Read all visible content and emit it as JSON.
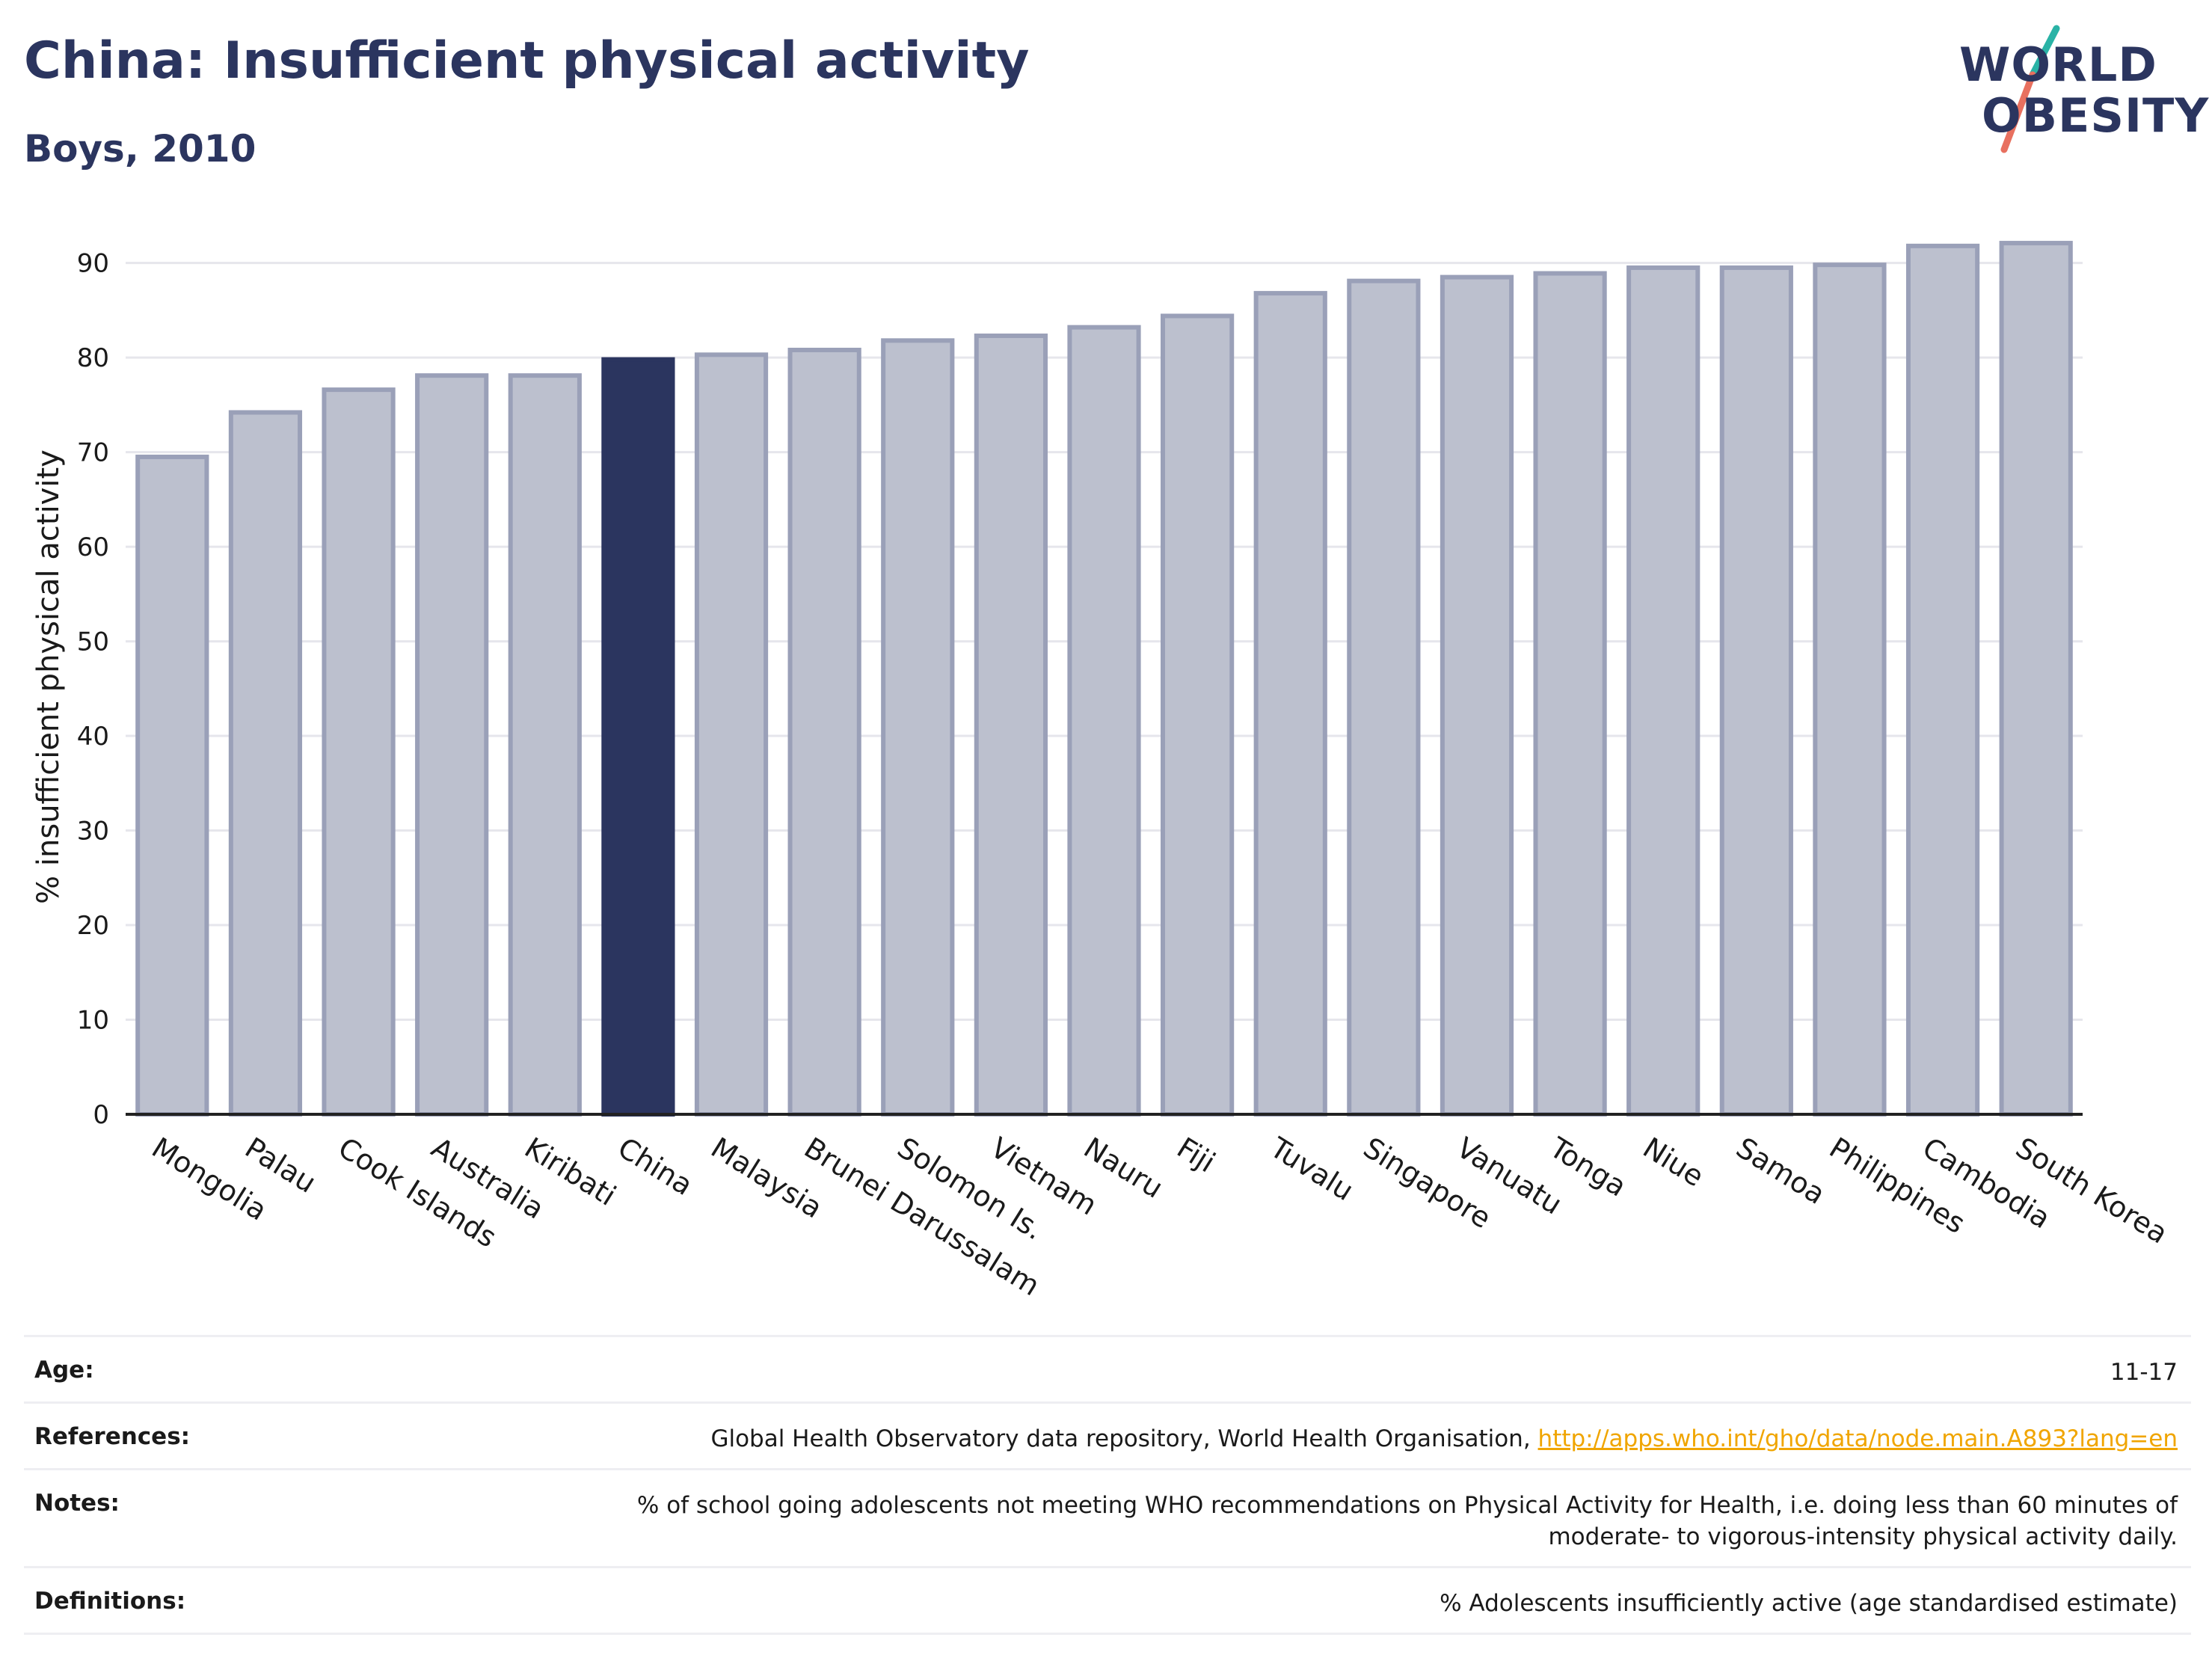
{
  "header": {
    "title": "China: Insufficient physical activity",
    "subtitle": "Boys, 2010"
  },
  "logo": {
    "line1": "WORLD",
    "line2": "OBESITY",
    "colors": {
      "text": "#2b355f",
      "slash_top": "#2ab3a6",
      "slash_bottom": "#e8705f"
    }
  },
  "chart_data": {
    "type": "bar",
    "title": "China: Insufficient physical activity",
    "subtitle": "Boys, 2010",
    "xlabel": "",
    "ylabel": "% insufficient physical activity",
    "ylim": [
      0,
      92.5
    ],
    "yticks": [
      0,
      10,
      20,
      30,
      40,
      50,
      60,
      70,
      80,
      90
    ],
    "grid": true,
    "categories": [
      "Mongolia",
      "Palau",
      "Cook Islands",
      "Australia",
      "Kiribati",
      "China",
      "Malaysia",
      "Brunei Darussalam",
      "Solomon Is.",
      "Vietnam",
      "Nauru",
      "Fiji",
      "Tuvalu",
      "Singapore",
      "Vanuatu",
      "Tonga",
      "Niue",
      "Samoa",
      "Philippines",
      "Cambodia",
      "South Korea"
    ],
    "values": [
      69.5,
      74.2,
      76.6,
      78.1,
      78.1,
      79.8,
      80.3,
      80.8,
      81.8,
      82.3,
      83.2,
      84.4,
      86.8,
      88.1,
      88.5,
      88.9,
      89.5,
      89.5,
      89.8,
      91.8,
      92.1
    ],
    "highlight": "China",
    "colors": {
      "bar": "#bcc0ce",
      "bar_edge": "#9aa0b8",
      "highlight": "#2b355f",
      "grid": "#e6e6ec",
      "axis": "#222222"
    }
  },
  "meta": {
    "age_label": "Age:",
    "age_value": "11-17",
    "references_label": "References:",
    "references_text": "Global Health Observatory data repository, World Health Organisation, ",
    "references_link": "http://apps.who.int/gho/data/node.main.A893?lang=en",
    "notes_label": "Notes:",
    "notes_value": "% of school going adolescents not meeting WHO recommendations on Physical Activity for Health, i.e. doing less than 60 minutes of moderate- to vigorous-intensity physical activity daily.",
    "definitions_label": "Definitions:",
    "definitions_value": "% Adolescents insufficiently active (age standardised estimate)"
  }
}
